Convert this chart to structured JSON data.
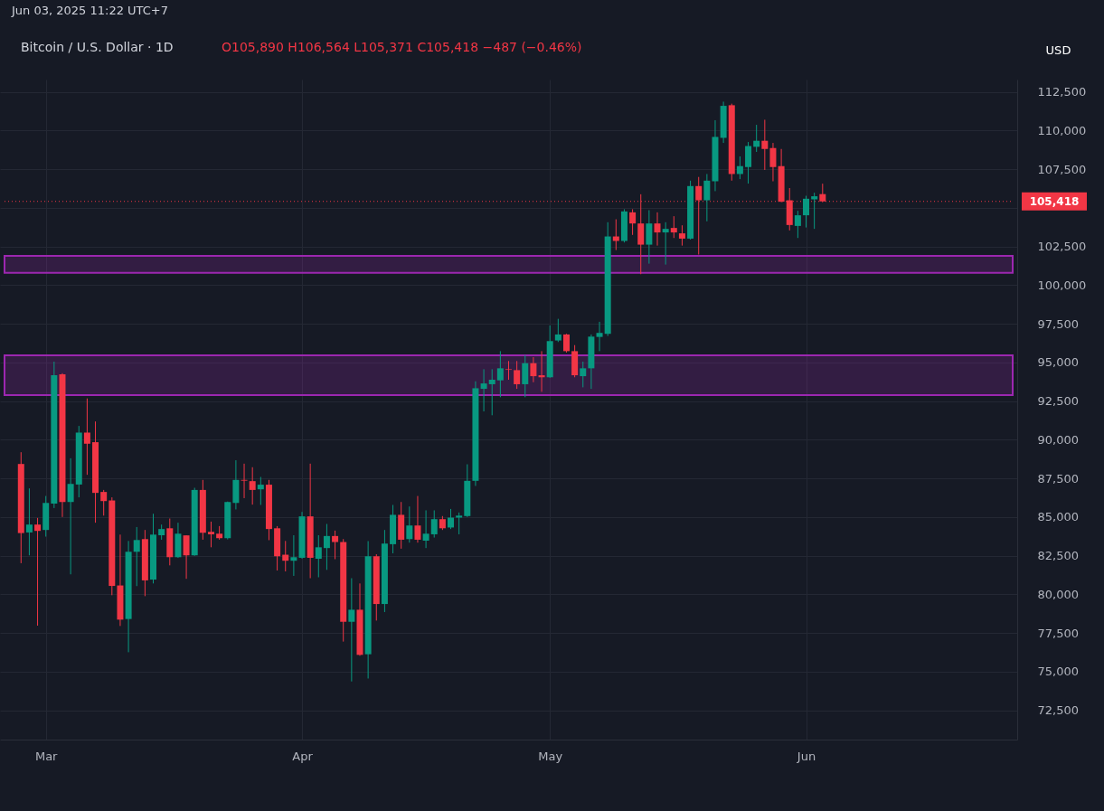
{
  "chart_data": {
    "type": "candlestick",
    "title": "Bitcoin / U.S. Dollar · 1D",
    "subtitle": "O105,890 H106,564 L105,371 C105,418 −487 (−0.46%)",
    "ylabel": "USD",
    "annotations": [
      "Jun 03, 2025 11:22 UTC+7"
    ],
    "x": [
      "2025-02-26",
      "2025-02-27",
      "2025-02-28",
      "2025-03-01",
      "2025-03-02",
      "2025-03-03",
      "2025-03-04",
      "2025-03-05",
      "2025-03-06",
      "2025-03-07",
      "2025-03-08",
      "2025-03-09",
      "2025-03-10",
      "2025-03-11",
      "2025-03-12",
      "2025-03-13",
      "2025-03-14",
      "2025-03-15",
      "2025-03-16",
      "2025-03-17",
      "2025-03-18",
      "2025-03-19",
      "2025-03-20",
      "2025-03-21",
      "2025-03-22",
      "2025-03-23",
      "2025-03-24",
      "2025-03-25",
      "2025-03-26",
      "2025-03-27",
      "2025-03-28",
      "2025-03-29",
      "2025-03-30",
      "2025-03-31",
      "2025-04-01",
      "2025-04-02",
      "2025-04-03",
      "2025-04-04",
      "2025-04-05",
      "2025-04-06",
      "2025-04-07",
      "2025-04-08",
      "2025-04-09",
      "2025-04-10",
      "2025-04-11",
      "2025-04-12",
      "2025-04-13",
      "2025-04-14",
      "2025-04-15",
      "2025-04-16",
      "2025-04-17",
      "2025-04-18",
      "2025-04-19",
      "2025-04-20",
      "2025-04-21",
      "2025-04-22",
      "2025-04-23",
      "2025-04-24",
      "2025-04-25",
      "2025-04-26",
      "2025-04-27",
      "2025-04-28",
      "2025-04-29",
      "2025-04-30",
      "2025-05-01",
      "2025-05-02",
      "2025-05-03",
      "2025-05-04",
      "2025-05-05",
      "2025-05-06",
      "2025-05-07",
      "2025-05-08",
      "2025-05-09",
      "2025-05-10",
      "2025-05-11",
      "2025-05-12",
      "2025-05-13",
      "2025-05-14",
      "2025-05-15",
      "2025-05-16",
      "2025-05-17",
      "2025-05-18",
      "2025-05-19",
      "2025-05-20",
      "2025-05-21",
      "2025-05-22",
      "2025-05-23",
      "2025-05-24",
      "2025-05-25",
      "2025-05-26",
      "2025-05-27",
      "2025-05-28",
      "2025-05-29",
      "2025-05-30",
      "2025-05-31",
      "2025-06-01",
      "2025-06-02",
      "2025-06-03"
    ],
    "ohlc": [
      [
        88430,
        89190,
        82010,
        83960
      ],
      [
        84000,
        86850,
        82520,
        84510
      ],
      [
        84510,
        84940,
        77970,
        84100
      ],
      [
        84160,
        86360,
        83730,
        85910
      ],
      [
        85870,
        95050,
        85580,
        94170
      ],
      [
        94230,
        94300,
        85000,
        85970
      ],
      [
        85970,
        88800,
        81290,
        87140
      ],
      [
        87100,
        90890,
        86270,
        90460
      ],
      [
        90460,
        92670,
        87730,
        89740
      ],
      [
        89840,
        91180,
        84630,
        86560
      ],
      [
        86620,
        86750,
        85090,
        86030
      ],
      [
        86070,
        86270,
        79940,
        80540
      ],
      [
        80570,
        83860,
        77950,
        78360
      ],
      [
        78400,
        83450,
        76250,
        82750
      ],
      [
        82750,
        84350,
        80530,
        83510
      ],
      [
        83570,
        84160,
        79880,
        80900
      ],
      [
        80950,
        85210,
        80700,
        83860
      ],
      [
        83820,
        84510,
        83530,
        84220
      ],
      [
        84270,
        84900,
        81870,
        82400
      ],
      [
        82400,
        84630,
        82350,
        83920
      ],
      [
        83810,
        83820,
        81000,
        82520
      ],
      [
        82520,
        86890,
        82490,
        86750
      ],
      [
        86750,
        87400,
        83530,
        83980
      ],
      [
        84040,
        84700,
        83040,
        83880
      ],
      [
        83920,
        84410,
        83530,
        83630
      ],
      [
        83630,
        86000,
        83550,
        85970
      ],
      [
        85910,
        88670,
        85490,
        87400
      ],
      [
        87400,
        88450,
        86220,
        87350
      ],
      [
        87320,
        88220,
        85800,
        86750
      ],
      [
        86790,
        87590,
        85780,
        87090
      ],
      [
        87090,
        87400,
        83500,
        84220
      ],
      [
        84270,
        84410,
        81540,
        82460
      ],
      [
        82560,
        83450,
        81480,
        82170
      ],
      [
        82170,
        83820,
        81190,
        82400
      ],
      [
        82360,
        85330,
        82300,
        85040
      ],
      [
        85040,
        88450,
        81040,
        82360
      ],
      [
        82300,
        83820,
        81100,
        83040
      ],
      [
        82990,
        84550,
        81580,
        83770
      ],
      [
        83770,
        84120,
        82270,
        83380
      ],
      [
        83380,
        83570,
        76940,
        78220
      ],
      [
        78220,
        81040,
        74360,
        79000
      ],
      [
        79000,
        80700,
        76020,
        76080
      ],
      [
        76120,
        83440,
        74550,
        82460
      ],
      [
        82460,
        82590,
        78300,
        79370
      ],
      [
        79370,
        84160,
        78850,
        83280
      ],
      [
        83240,
        85780,
        82650,
        85140
      ],
      [
        85140,
        85970,
        82950,
        83530
      ],
      [
        83570,
        85680,
        83340,
        84450
      ],
      [
        84450,
        86360,
        83340,
        83530
      ],
      [
        83470,
        85430,
        82990,
        83920
      ],
      [
        83880,
        85430,
        83670,
        84860
      ],
      [
        84860,
        85060,
        84160,
        84270
      ],
      [
        84320,
        85520,
        84220,
        84960
      ],
      [
        84960,
        85290,
        83880,
        85090
      ],
      [
        85060,
        88410,
        85000,
        87340
      ],
      [
        87340,
        93780,
        87010,
        93330
      ],
      [
        93290,
        94560,
        91830,
        93640
      ],
      [
        93590,
        94560,
        91580,
        93880
      ],
      [
        93840,
        95730,
        92750,
        94620
      ],
      [
        94560,
        95090,
        93880,
        94520
      ],
      [
        94500,
        95090,
        93290,
        93590
      ],
      [
        93590,
        95480,
        92750,
        94950
      ],
      [
        94950,
        95340,
        93720,
        94110
      ],
      [
        94170,
        95730,
        93100,
        94040
      ],
      [
        94040,
        97390,
        94000,
        96380
      ],
      [
        96420,
        97820,
        96320,
        96810
      ],
      [
        96810,
        96850,
        95640,
        95730
      ],
      [
        95730,
        96120,
        94040,
        94170
      ],
      [
        94110,
        95050,
        93390,
        94620
      ],
      [
        94620,
        96810,
        93290,
        96670
      ],
      [
        96650,
        97630,
        95730,
        96910
      ],
      [
        96850,
        104070,
        96710,
        103150
      ],
      [
        103150,
        104260,
        102270,
        102860
      ],
      [
        102860,
        104910,
        102760,
        104770
      ],
      [
        104710,
        104910,
        103250,
        103990
      ],
      [
        103990,
        105880,
        100710,
        102620
      ],
      [
        102620,
        104850,
        101390,
        103990
      ],
      [
        103990,
        104710,
        102560,
        103410
      ],
      [
        103410,
        104070,
        101330,
        103640
      ],
      [
        103700,
        104460,
        103050,
        103410
      ],
      [
        103350,
        103870,
        102560,
        103010
      ],
      [
        103010,
        106760,
        102950,
        106410
      ],
      [
        106410,
        107000,
        101980,
        105490
      ],
      [
        105490,
        107190,
        104130,
        106760
      ],
      [
        106720,
        110670,
        106080,
        109590
      ],
      [
        109530,
        111870,
        109200,
        111600
      ],
      [
        111640,
        111740,
        106760,
        107190
      ],
      [
        107190,
        108330,
        106860,
        107700
      ],
      [
        107640,
        109260,
        106570,
        109000
      ],
      [
        108950,
        110370,
        108620,
        109340
      ],
      [
        109340,
        110700,
        107450,
        108810
      ],
      [
        108870,
        109200,
        106720,
        107640
      ],
      [
        107700,
        108810,
        105360,
        105400
      ],
      [
        105490,
        106280,
        103540,
        103890
      ],
      [
        103830,
        104810,
        103050,
        104520
      ],
      [
        104520,
        105780,
        103730,
        105590
      ],
      [
        105550,
        105980,
        103640,
        105750
      ],
      [
        105890,
        106564,
        105371,
        105418
      ]
    ],
    "colors": [
      "#f23645",
      "#089981",
      "#f23645",
      "#089981",
      "#089981",
      "#f23645",
      "#089981",
      "#089981",
      "#f23645",
      "#f23645",
      "#f23645",
      "#f23645",
      "#f23645",
      "#089981",
      "#089981",
      "#f23645",
      "#089981",
      "#089981",
      "#f23645",
      "#089981",
      "#f23645",
      "#089981",
      "#f23645",
      "#f23645",
      "#f23645",
      "#089981",
      "#089981",
      "#f23645",
      "#f23645",
      "#089981",
      "#f23645",
      "#f23645",
      "#f23645",
      "#089981",
      "#089981",
      "#f23645",
      "#089981",
      "#089981",
      "#f23645",
      "#f23645",
      "#089981",
      "#f23645",
      "#089981",
      "#f23645",
      "#089981",
      "#089981",
      "#f23645",
      "#089981",
      "#f23645",
      "#089981",
      "#089981",
      "#f23645",
      "#089981",
      "#089981",
      "#089981",
      "#089981",
      "#089981",
      "#089981",
      "#089981",
      "#f23645",
      "#f23645",
      "#089981",
      "#f23645",
      "#f23645",
      "#089981",
      "#089981",
      "#f23645",
      "#f23645",
      "#089981",
      "#089981",
      "#089981",
      "#089981",
      "#f23645",
      "#089981",
      "#f23645",
      "#f23645",
      "#089981",
      "#f23645",
      "#089981",
      "#f23645",
      "#f23645",
      "#089981",
      "#f23645",
      "#089981",
      "#089981",
      "#089981",
      "#f23645",
      "#089981",
      "#089981",
      "#089981",
      "#f23645",
      "#f23645",
      "#f23645",
      "#f23645",
      "#089981",
      "#089981",
      "#089981",
      "#f23645"
    ],
    "xlim": [
      "2025-02-24",
      "2025-06-26"
    ],
    "xticks": [
      {
        "value": "2025-03-01",
        "label": "Mar"
      },
      {
        "value": "2025-04-01",
        "label": "Apr"
      },
      {
        "value": "2025-05-01",
        "label": "May"
      },
      {
        "value": "2025-06-01",
        "label": "Jun"
      }
    ],
    "ylim": [
      70600,
      113300
    ],
    "yticks": [
      {
        "value": 72500,
        "label": "72,500"
      },
      {
        "value": 75000,
        "label": "75,000"
      },
      {
        "value": 77500,
        "label": "77,500"
      },
      {
        "value": 80000,
        "label": "80,000"
      },
      {
        "value": 82500,
        "label": "82,500"
      },
      {
        "value": 85000,
        "label": "85,000"
      },
      {
        "value": 87500,
        "label": "87,500"
      },
      {
        "value": 90000,
        "label": "90,000"
      },
      {
        "value": 92500,
        "label": "92,500"
      },
      {
        "value": 95000,
        "label": "95,000"
      },
      {
        "value": 97500,
        "label": "97,500"
      },
      {
        "value": 100000,
        "label": "100,000"
      },
      {
        "value": 102500,
        "label": "102,500"
      },
      {
        "value": 105000,
        "label": null
      },
      {
        "value": 107500,
        "label": "107,500"
      },
      {
        "value": 110000,
        "label": "110,000"
      },
      {
        "value": 112500,
        "label": "112,500"
      }
    ],
    "grid": true,
    "ref_lines": [
      {
        "axis": "y",
        "value": 105418,
        "label": "105,418",
        "color": "#f23645",
        "line_style": "dotted"
      }
    ],
    "bands": [
      {
        "axis": "y",
        "from": 100800,
        "to": 101900,
        "color": "#9c27b0"
      },
      {
        "axis": "y",
        "from": 92880,
        "to": 95460,
        "color": "#9c27b0"
      }
    ]
  }
}
